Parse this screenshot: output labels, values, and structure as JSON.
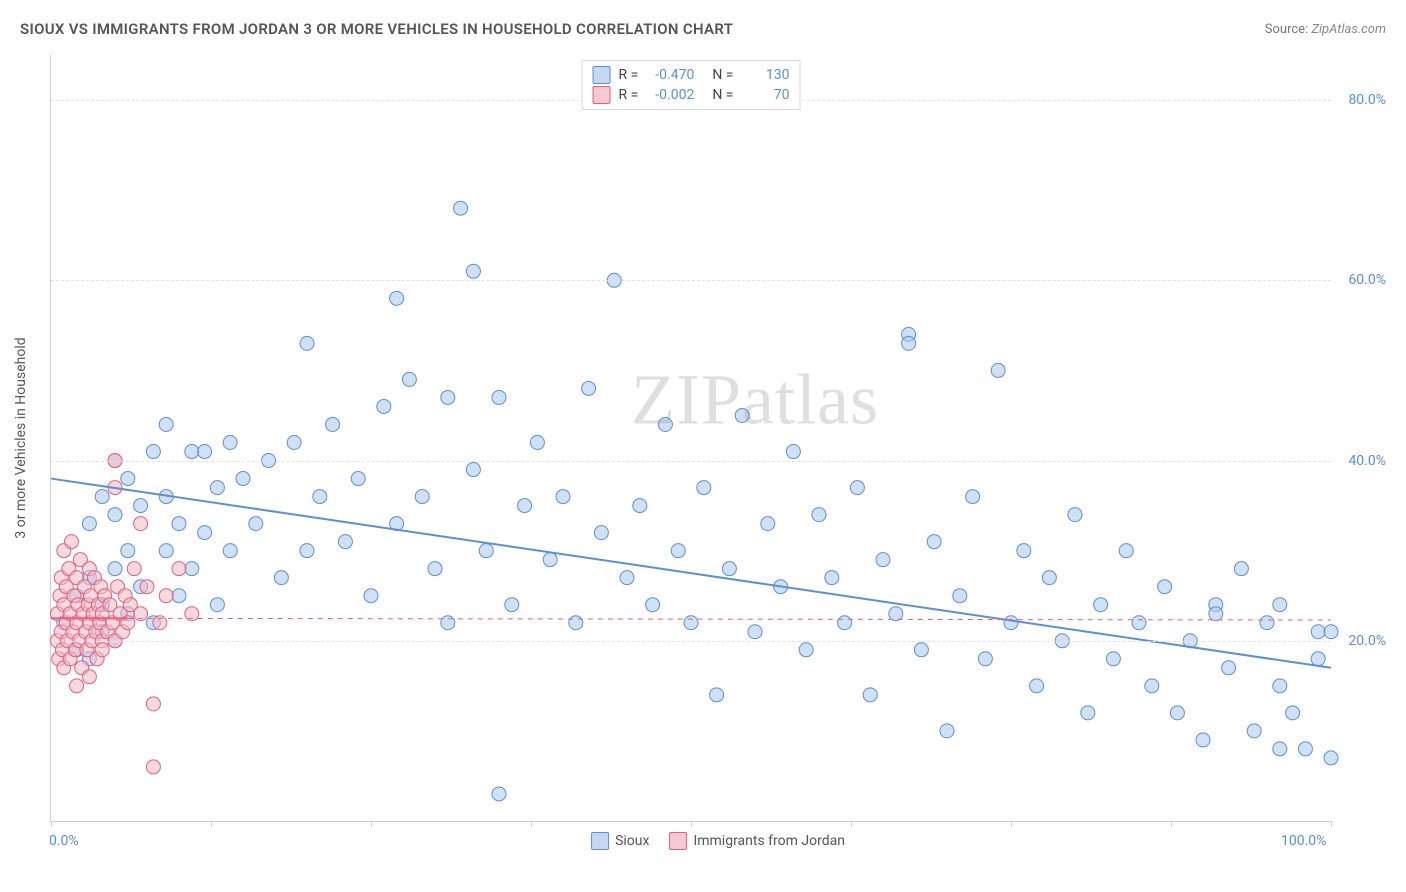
{
  "title": "SIOUX VS IMMIGRANTS FROM JORDAN 3 OR MORE VEHICLES IN HOUSEHOLD CORRELATION CHART",
  "source_label": "Source:",
  "source_value": "ZipAtlas.com",
  "y_axis_label": "3 or more Vehicles in Household",
  "watermark": "ZIPatlas",
  "chart": {
    "type": "scatter",
    "background_color": "#ffffff",
    "grid_color": "#e3e3e3",
    "axis_color": "#cfcfcf",
    "tick_label_color": "#5b8fd6",
    "xlim": [
      0,
      100
    ],
    "ylim": [
      0,
      85
    ],
    "xticks": [
      0,
      12.5,
      25,
      37.5,
      50,
      62.5,
      75,
      87.5,
      100
    ],
    "xtick_labels": {
      "0": "0.0%",
      "100": "100.0%"
    },
    "yticks": [
      20,
      40,
      60,
      80
    ],
    "ytick_labels": {
      "20": "20.0%",
      "40": "40.0%",
      "60": "60.0%",
      "80": "80.0%"
    },
    "marker_radius": 7,
    "marker_opacity": 0.55,
    "line_width": 2
  },
  "series": [
    {
      "name": "Sioux",
      "color_fill": "#a9c9ee",
      "color_stroke": "#5b8fd6",
      "swatch_fill": "rgba(91,143,214,0.35)",
      "R": "-0.470",
      "N": "130",
      "trend": {
        "x1": 0,
        "y1": 38,
        "x2": 100,
        "y2": 17,
        "dash": false
      },
      "points": [
        [
          1,
          22
        ],
        [
          2,
          19
        ],
        [
          2,
          25
        ],
        [
          3,
          18
        ],
        [
          3,
          27
        ],
        [
          3,
          33
        ],
        [
          4,
          21
        ],
        [
          4,
          24
        ],
        [
          4,
          36
        ],
        [
          5,
          20
        ],
        [
          5,
          28
        ],
        [
          5,
          34
        ],
        [
          5,
          40
        ],
        [
          6,
          23
        ],
        [
          6,
          30
        ],
        [
          6,
          38
        ],
        [
          7,
          26
        ],
        [
          7,
          35
        ],
        [
          8,
          22
        ],
        [
          8,
          41
        ],
        [
          9,
          30
        ],
        [
          9,
          36
        ],
        [
          9,
          44
        ],
        [
          10,
          25
        ],
        [
          10,
          33
        ],
        [
          11,
          28
        ],
        [
          11,
          41
        ],
        [
          12,
          41
        ],
        [
          12,
          32
        ],
        [
          13,
          37
        ],
        [
          13,
          24
        ],
        [
          14,
          30
        ],
        [
          14,
          42
        ],
        [
          15,
          38
        ],
        [
          16,
          33
        ],
        [
          17,
          40
        ],
        [
          18,
          27
        ],
        [
          19,
          42
        ],
        [
          20,
          53
        ],
        [
          20,
          30
        ],
        [
          21,
          36
        ],
        [
          22,
          44
        ],
        [
          23,
          31
        ],
        [
          24,
          38
        ],
        [
          25,
          25
        ],
        [
          26,
          46
        ],
        [
          27,
          33
        ],
        [
          27,
          58
        ],
        [
          28,
          49
        ],
        [
          29,
          36
        ],
        [
          30,
          28
        ],
        [
          31,
          22
        ],
        [
          31,
          47
        ],
        [
          32,
          68
        ],
        [
          33,
          39
        ],
        [
          33,
          61
        ],
        [
          34,
          30
        ],
        [
          35,
          47
        ],
        [
          35,
          3
        ],
        [
          36,
          24
        ],
        [
          37,
          35
        ],
        [
          38,
          42
        ],
        [
          39,
          29
        ],
        [
          40,
          36
        ],
        [
          41,
          22
        ],
        [
          42,
          48
        ],
        [
          43,
          32
        ],
        [
          44,
          60
        ],
        [
          45,
          27
        ],
        [
          46,
          35
        ],
        [
          47,
          24
        ],
        [
          48,
          44
        ],
        [
          49,
          30
        ],
        [
          50,
          22
        ],
        [
          51,
          37
        ],
        [
          52,
          14
        ],
        [
          53,
          28
        ],
        [
          54,
          45
        ],
        [
          55,
          21
        ],
        [
          56,
          33
        ],
        [
          57,
          26
        ],
        [
          58,
          41
        ],
        [
          59,
          19
        ],
        [
          60,
          34
        ],
        [
          61,
          27
        ],
        [
          62,
          22
        ],
        [
          63,
          37
        ],
        [
          64,
          14
        ],
        [
          65,
          29
        ],
        [
          66,
          23
        ],
        [
          67,
          54
        ],
        [
          67,
          53
        ],
        [
          68,
          19
        ],
        [
          69,
          31
        ],
        [
          70,
          10
        ],
        [
          71,
          25
        ],
        [
          72,
          36
        ],
        [
          73,
          18
        ],
        [
          74,
          50
        ],
        [
          75,
          22
        ],
        [
          76,
          30
        ],
        [
          77,
          15
        ],
        [
          78,
          27
        ],
        [
          79,
          20
        ],
        [
          80,
          34
        ],
        [
          81,
          12
        ],
        [
          82,
          24
        ],
        [
          83,
          18
        ],
        [
          84,
          30
        ],
        [
          85,
          22
        ],
        [
          86,
          15
        ],
        [
          87,
          26
        ],
        [
          88,
          12
        ],
        [
          89,
          20
        ],
        [
          90,
          9
        ],
        [
          91,
          24
        ],
        [
          91,
          23
        ],
        [
          92,
          17
        ],
        [
          93,
          28
        ],
        [
          94,
          10
        ],
        [
          95,
          22
        ],
        [
          96,
          15
        ],
        [
          96,
          8
        ],
        [
          96,
          24
        ],
        [
          97,
          12
        ],
        [
          98,
          8
        ],
        [
          99,
          18
        ],
        [
          99,
          21
        ],
        [
          100,
          7
        ],
        [
          100,
          21
        ]
      ]
    },
    {
      "name": "Immigrants from Jordan",
      "color_fill": "#f3b9c7",
      "color_stroke": "#e4607e",
      "swatch_fill": "rgba(228,96,126,0.35)",
      "R": "-0.002",
      "N": "70",
      "trend": {
        "x1": 0,
        "y1": 22.5,
        "x2": 100,
        "y2": 22.3,
        "dash": true,
        "solid_until": 6
      },
      "points": [
        [
          0.5,
          20
        ],
        [
          0.5,
          23
        ],
        [
          0.6,
          18
        ],
        [
          0.7,
          25
        ],
        [
          0.8,
          21
        ],
        [
          0.8,
          27
        ],
        [
          0.9,
          19
        ],
        [
          1,
          24
        ],
        [
          1,
          30
        ],
        [
          1,
          17
        ],
        [
          1.2,
          22
        ],
        [
          1.2,
          26
        ],
        [
          1.3,
          20
        ],
        [
          1.4,
          28
        ],
        [
          1.5,
          18
        ],
        [
          1.5,
          23
        ],
        [
          1.6,
          31
        ],
        [
          1.7,
          21
        ],
        [
          1.8,
          25
        ],
        [
          1.9,
          19
        ],
        [
          2,
          22
        ],
        [
          2,
          27
        ],
        [
          2,
          15
        ],
        [
          2.1,
          24
        ],
        [
          2.2,
          20
        ],
        [
          2.3,
          29
        ],
        [
          2.4,
          17
        ],
        [
          2.5,
          23
        ],
        [
          2.6,
          26
        ],
        [
          2.7,
          21
        ],
        [
          2.8,
          19
        ],
        [
          2.9,
          24
        ],
        [
          3,
          22
        ],
        [
          3,
          28
        ],
        [
          3,
          16
        ],
        [
          3.1,
          25
        ],
        [
          3.2,
          20
        ],
        [
          3.3,
          23
        ],
        [
          3.4,
          27
        ],
        [
          3.5,
          21
        ],
        [
          3.6,
          18
        ],
        [
          3.7,
          24
        ],
        [
          3.8,
          22
        ],
        [
          3.9,
          26
        ],
        [
          4,
          20
        ],
        [
          4,
          23
        ],
        [
          4,
          19
        ],
        [
          4.2,
          25
        ],
        [
          4.4,
          21
        ],
        [
          4.6,
          24
        ],
        [
          4.8,
          22
        ],
        [
          5,
          20
        ],
        [
          5,
          37
        ],
        [
          5,
          40
        ],
        [
          5.2,
          26
        ],
        [
          5.4,
          23
        ],
        [
          5.6,
          21
        ],
        [
          5.8,
          25
        ],
        [
          6,
          22
        ],
        [
          6.2,
          24
        ],
        [
          6.5,
          28
        ],
        [
          7,
          23
        ],
        [
          7,
          33
        ],
        [
          7.5,
          26
        ],
        [
          8,
          13
        ],
        [
          8,
          6
        ],
        [
          8.5,
          22
        ],
        [
          9,
          25
        ],
        [
          10,
          28
        ],
        [
          11,
          23
        ]
      ]
    }
  ],
  "legend": {
    "series1": "Sioux",
    "series2": "Immigrants from Jordan"
  }
}
